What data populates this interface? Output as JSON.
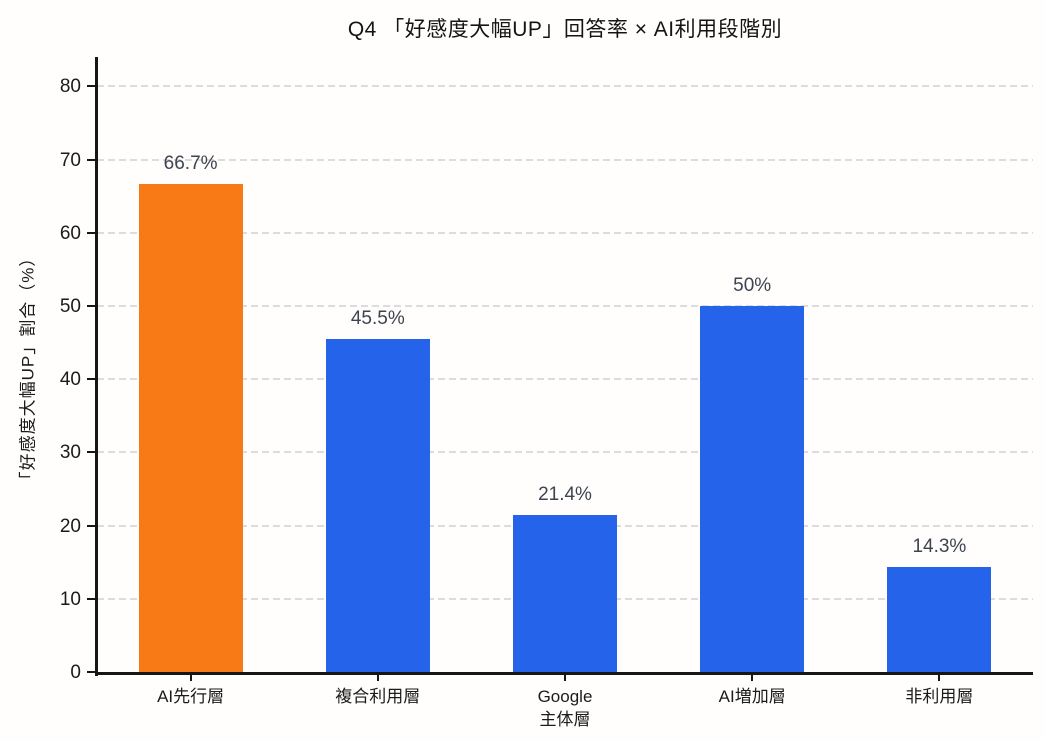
{
  "chart_data": {
    "type": "bar",
    "title": "Q4 「好感度大幅UP」回答率 × AI利用段階別",
    "ylabel": "「好感度大幅UP」割合（%）",
    "xlabel": "",
    "categories": [
      "AI先行層",
      "複合利用層",
      "Google\n主体層",
      "AI増加層",
      "非利用層"
    ],
    "values": [
      66.7,
      45.5,
      21.4,
      50,
      14.3
    ],
    "value_labels": [
      "66.7%",
      "45.5%",
      "21.4%",
      "50%",
      "14.3%"
    ],
    "bar_colors": [
      "#f87a17",
      "#2563eb",
      "#2563eb",
      "#2563eb",
      "#2563eb"
    ],
    "highlight_color": "#f87a17",
    "default_color": "#2563eb",
    "ylim": [
      0,
      84
    ],
    "yticks": [
      0,
      10,
      20,
      30,
      40,
      50,
      60,
      70,
      80
    ],
    "grid": true,
    "grid_color": "#dcdcdc",
    "axis_color": "#161616",
    "tick_label_color": "#1b1b1b",
    "value_label_color": "#3d4451",
    "background": "#fffefc",
    "legend": null
  }
}
